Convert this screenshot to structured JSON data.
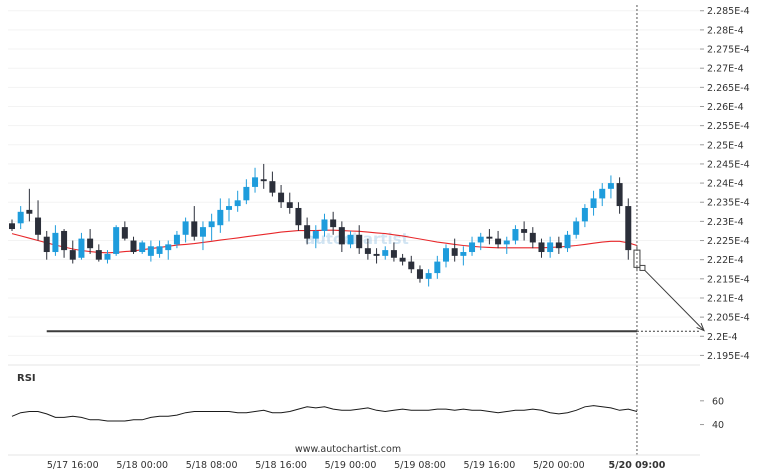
{
  "chart_data": {
    "type": "candlestick",
    "instrument_unit": "price",
    "y_ticks": [
      "2.285E-4",
      "2.28E-4",
      "2.275E-4",
      "2.27E-4",
      "2.265E-4",
      "2.26E-4",
      "2.255E-4",
      "2.25E-4",
      "2.245E-4",
      "2.24E-4",
      "2.235E-4",
      "2.23E-4",
      "2.225E-4",
      "2.22E-4",
      "2.215E-4",
      "2.21E-4",
      "2.205E-4",
      "2.2E-4",
      "2.195E-4"
    ],
    "y_tick_values": [
      2.285,
      2.28,
      2.275,
      2.27,
      2.265,
      2.26,
      2.255,
      2.25,
      2.245,
      2.24,
      2.235,
      2.23,
      2.225,
      2.22,
      2.215,
      2.21,
      2.205,
      2.2,
      2.195
    ],
    "ylim": [
      2.1925,
      2.2865
    ],
    "x_ticks": [
      "5/17 16:00",
      "5/18 00:00",
      "5/18 08:00",
      "5/18 16:00",
      "5/19 00:00",
      "5/19 08:00",
      "5/19 16:00",
      "5/20 00:00",
      "5/20 09:00"
    ],
    "x_tick_bars": [
      7,
      15,
      23,
      31,
      39,
      47,
      55,
      63,
      72
    ],
    "candles": [
      [
        2.2295,
        2.2305,
        2.2275,
        2.228
      ],
      [
        2.2295,
        2.234,
        2.228,
        2.2325
      ],
      [
        2.233,
        2.2385,
        2.23,
        2.232
      ],
      [
        2.231,
        2.2355,
        2.225,
        2.2265
      ],
      [
        2.226,
        2.2275,
        2.22,
        2.222
      ],
      [
        2.222,
        2.229,
        2.221,
        2.227
      ],
      [
        2.2275,
        2.228,
        2.2205,
        2.2225
      ],
      [
        2.2225,
        2.225,
        2.219,
        2.22
      ],
      [
        2.2205,
        2.227,
        2.22,
        2.2255
      ],
      [
        2.2255,
        2.228,
        2.2215,
        2.223
      ],
      [
        2.2225,
        2.224,
        2.2195,
        2.22
      ],
      [
        2.22,
        2.2225,
        2.219,
        2.2215
      ],
      [
        2.2215,
        2.229,
        2.221,
        2.2285
      ],
      [
        2.2285,
        2.23,
        2.225,
        2.2255
      ],
      [
        2.225,
        2.226,
        2.2215,
        2.222
      ],
      [
        2.222,
        2.225,
        2.2215,
        2.2245
      ],
      [
        2.221,
        2.225,
        2.2195,
        2.2235
      ],
      [
        2.2215,
        2.225,
        2.2205,
        2.2235
      ],
      [
        2.2225,
        2.225,
        2.22,
        2.224
      ],
      [
        2.224,
        2.2275,
        2.223,
        2.2265
      ],
      [
        2.2265,
        2.231,
        2.2245,
        2.23
      ],
      [
        2.23,
        2.234,
        2.225,
        2.226
      ],
      [
        2.226,
        2.23,
        2.2225,
        2.2285
      ],
      [
        2.2285,
        2.232,
        2.225,
        2.23
      ],
      [
        2.229,
        2.236,
        2.227,
        2.233
      ],
      [
        2.233,
        2.236,
        2.23,
        2.234
      ],
      [
        2.234,
        2.238,
        2.2325,
        2.2355
      ],
      [
        2.2355,
        2.241,
        2.2345,
        2.239
      ],
      [
        2.239,
        2.244,
        2.2375,
        2.2415
      ],
      [
        2.241,
        2.245,
        2.2385,
        2.2405
      ],
      [
        2.2405,
        2.243,
        2.2365,
        2.2375
      ],
      [
        2.2375,
        2.2395,
        2.2335,
        2.235
      ],
      [
        2.235,
        2.2375,
        2.232,
        2.2335
      ],
      [
        2.2335,
        2.235,
        2.2275,
        2.229
      ],
      [
        2.229,
        2.231,
        2.224,
        2.2255
      ],
      [
        2.2255,
        2.229,
        2.223,
        2.2275
      ],
      [
        2.2275,
        2.232,
        2.226,
        2.2305
      ],
      [
        2.2305,
        2.2325,
        2.2265,
        2.2285
      ],
      [
        2.2285,
        2.23,
        2.222,
        2.224
      ],
      [
        2.224,
        2.2275,
        2.223,
        2.2265
      ],
      [
        2.2265,
        2.229,
        2.2215,
        2.223
      ],
      [
        2.223,
        2.2255,
        2.22,
        2.2215
      ],
      [
        2.2215,
        2.223,
        2.219,
        2.221
      ],
      [
        2.221,
        2.2235,
        2.22,
        2.2225
      ],
      [
        2.2225,
        2.2245,
        2.2195,
        2.2205
      ],
      [
        2.2205,
        2.2215,
        2.2185,
        2.2195
      ],
      [
        2.2195,
        2.221,
        2.2165,
        2.2175
      ],
      [
        2.2175,
        2.2185,
        2.214,
        2.215
      ],
      [
        2.215,
        2.2175,
        2.213,
        2.2165
      ],
      [
        2.2165,
        2.221,
        2.215,
        2.2195
      ],
      [
        2.2195,
        2.224,
        2.218,
        2.223
      ],
      [
        2.223,
        2.2255,
        2.2195,
        2.221
      ],
      [
        2.221,
        2.2235,
        2.2185,
        2.222
      ],
      [
        2.222,
        2.226,
        2.221,
        2.2245
      ],
      [
        2.2245,
        2.227,
        2.2225,
        2.226
      ],
      [
        2.226,
        2.228,
        2.224,
        2.2255
      ],
      [
        2.2255,
        2.2275,
        2.223,
        2.224
      ],
      [
        2.224,
        2.226,
        2.2215,
        2.225
      ],
      [
        2.225,
        2.229,
        2.224,
        2.228
      ],
      [
        2.228,
        2.23,
        2.225,
        2.227
      ],
      [
        2.227,
        2.2285,
        2.223,
        2.2245
      ],
      [
        2.2245,
        2.2255,
        2.2205,
        2.222
      ],
      [
        2.222,
        2.226,
        2.2205,
        2.2245
      ],
      [
        2.2245,
        2.226,
        2.2215,
        2.223
      ],
      [
        2.223,
        2.2275,
        2.222,
        2.2265
      ],
      [
        2.2265,
        2.231,
        2.2255,
        2.23
      ],
      [
        2.23,
        2.2345,
        2.2285,
        2.2335
      ],
      [
        2.2335,
        2.238,
        2.2315,
        2.236
      ],
      [
        2.236,
        2.24,
        2.234,
        2.2385
      ],
      [
        2.2385,
        2.242,
        2.236,
        2.24
      ],
      [
        2.24,
        2.2415,
        2.232,
        2.234
      ],
      [
        2.234,
        2.236,
        2.22,
        2.2225
      ],
      [
        2.2225,
        2.2235,
        2.217,
        2.218
      ]
    ],
    "moving_average": [
      2.2268,
      2.2262,
      2.2256,
      2.225,
      2.2244,
      2.2238,
      2.2233,
      2.2228,
      2.2224,
      2.2221,
      2.2219,
      2.2218,
      2.2219,
      2.2221,
      2.2223,
      2.2226,
      2.2229,
      2.2232,
      2.2235,
      2.2238,
      2.224,
      2.2242,
      2.2245,
      2.2248,
      2.2251,
      2.2254,
      2.2257,
      2.226,
      2.2263,
      2.2266,
      2.2269,
      2.2272,
      2.2274,
      2.2276,
      2.2276,
      2.2276,
      2.2277,
      2.2277,
      2.2276,
      2.2275,
      2.2274,
      2.2272,
      2.227,
      2.2268,
      2.2265,
      2.2262,
      2.2258,
      2.2254,
      2.225,
      2.2246,
      2.2243,
      2.224,
      2.2237,
      2.2235,
      2.2233,
      2.2232,
      2.2231,
      2.2231,
      2.2231,
      2.2231,
      2.2231,
      2.2231,
      2.2232,
      2.2233,
      2.2235,
      2.2237,
      2.224,
      2.2243,
      2.2246,
      2.2248,
      2.2248,
      2.2244,
      2.2237
    ],
    "support_level": 2.2013,
    "support_start_bar": 4,
    "breakout_bar": 72,
    "forecast_target": 2.2015,
    "rsi_title": "RSI",
    "rsi_ticks": [
      "60",
      "40"
    ],
    "rsi_tick_values": [
      60,
      40
    ],
    "rsi_ylim": [
      27,
      75
    ],
    "rsi": [
      47,
      50,
      51,
      51,
      49,
      46,
      46,
      47,
      46,
      44,
      44,
      43,
      43,
      43,
      44,
      44,
      46,
      47,
      47,
      48,
      50,
      51,
      51,
      51,
      51,
      51,
      50,
      50,
      51,
      52,
      50,
      50,
      51,
      53,
      55,
      54,
      55,
      53,
      52,
      52,
      53,
      54,
      52,
      51,
      52,
      53,
      52,
      52,
      52,
      53,
      53,
      52,
      53,
      52,
      52,
      51,
      50,
      51,
      52,
      52,
      53,
      52,
      50,
      49,
      50,
      52,
      55,
      56,
      55,
      54,
      52,
      53,
      51
    ],
    "colors": {
      "bull": "#1e9cdc",
      "bear": "#2b2f3a",
      "moving_average": "#e8272a",
      "support": "#3c3c3c",
      "forecast": "#3c3c3c",
      "rsi_line": "#1a1a1a",
      "vertical_marker": "#555555"
    }
  },
  "watermark_text": "autochartist",
  "footer_text": "www.autochartist.com"
}
